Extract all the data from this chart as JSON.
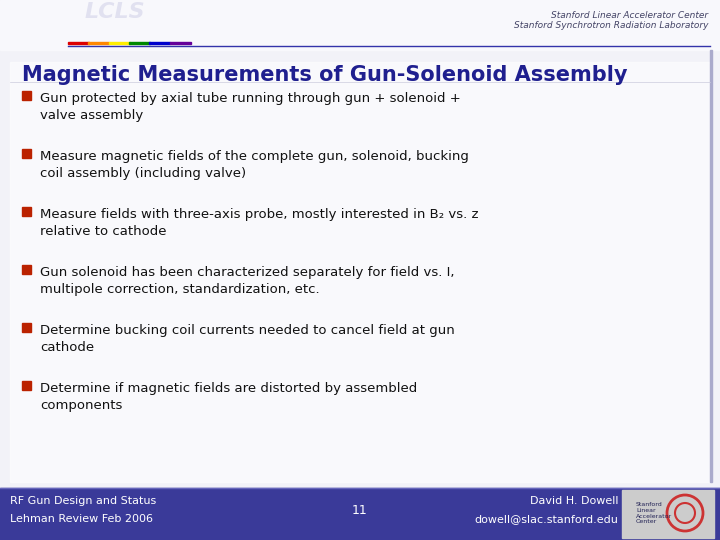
{
  "title": "Magnetic Measurements of Gun-Solenoid Assembly",
  "title_color": "#1f1f8f",
  "title_fontsize": 15,
  "bg_color": "#eeeef5",
  "body_bg_color": "#f2f2f8",
  "footer_bg_color": "#3a3a99",
  "bullet_color": "#bb2200",
  "bullet_items": [
    "Gun protected by axial tube running through gun + solenoid +\nvalve assembly",
    "Measure magnetic fields of the complete gun, solenoid, bucking\ncoil assembly (including valve)",
    "Measure fields with three-axis probe, mostly interested in B₂ vs. z\nrelative to cathode",
    "Gun solenoid has been characterized separately for field vs. I,\nmultipole correction, standardization, etc.",
    "Determine bucking coil currents needed to cancel field at gun\ncathode",
    "Determine if magnetic fields are distorted by assembled\ncomponents"
  ],
  "footer_left_line1": "RF Gun Design and Status",
  "footer_left_line2": "Lehman Review Feb 2006",
  "footer_center": "11",
  "footer_right_line1": "David H. Dowell",
  "footer_right_line2": "dowell@slac.stanford.edu",
  "header_right_line1": "Stanford Linear Accelerator Center",
  "header_right_line2": "Stanford Synchrotron Radiation Laboratory",
  "text_color": "#111111",
  "footer_text_color": "#ffffff",
  "body_text_fontsize": 9.5,
  "footer_fontsize": 8,
  "header_fontsize": 6.5,
  "rainbow_colors": [
    "#dd0000",
    "#ff8800",
    "#ffee00",
    "#008800",
    "#0000cc",
    "#660099"
  ],
  "header_line_color": "#3333aa",
  "lcls_color": "#bbbbcc"
}
